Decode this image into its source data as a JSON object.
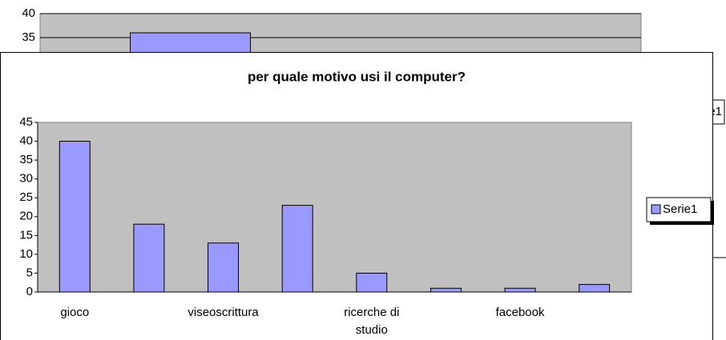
{
  "chart_data": [
    {
      "type": "bar",
      "series": [
        {
          "name": "Serie1",
          "color": "#9999ff",
          "values": [
            36
          ]
        }
      ],
      "ylim": [
        0,
        40
      ],
      "yticks": [
        35,
        40
      ],
      "grid": true
    },
    {
      "type": "bar",
      "title": "per quale motivo usi il computer?",
      "categories": [
        "gioco",
        null,
        "viseoscrittura",
        null,
        "ricerche di studio",
        null,
        "facebook",
        null
      ],
      "series": [
        {
          "name": "Serie1",
          "color": "#9999ff",
          "values": [
            40,
            18,
            13,
            23,
            5,
            1,
            1,
            2
          ]
        }
      ],
      "ylim": [
        0,
        45
      ],
      "yticks": [
        0,
        5,
        10,
        15,
        20,
        25,
        30,
        35,
        40,
        45
      ],
      "grid": false
    }
  ]
}
